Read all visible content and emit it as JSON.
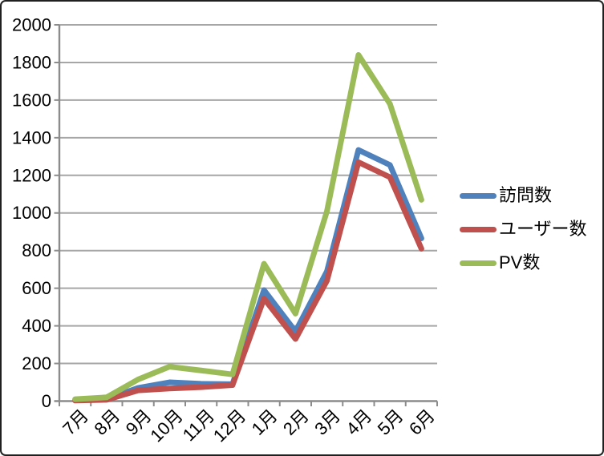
{
  "chart_data": {
    "type": "line",
    "title": "",
    "xlabel": "",
    "ylabel": "",
    "categories": [
      "7月",
      "8月",
      "9月",
      "10月",
      "11月",
      "12月",
      "1月",
      "2月",
      "3月",
      "4月",
      "5月",
      "6月"
    ],
    "series": [
      {
        "name": "訪問数",
        "color": "#4F81BD",
        "values": [
          5,
          10,
          70,
          100,
          92,
          90,
          590,
          370,
          690,
          1335,
          1255,
          865
        ]
      },
      {
        "name": "ユーザー数",
        "color": "#C0504D",
        "values": [
          3,
          7,
          57,
          67,
          74,
          85,
          545,
          330,
          640,
          1270,
          1190,
          810
        ]
      },
      {
        "name": "PV数",
        "color": "#9BBB59",
        "values": [
          10,
          20,
          115,
          183,
          163,
          142,
          730,
          465,
          1010,
          1840,
          1580,
          1070
        ]
      }
    ],
    "ylim": [
      0,
      2000
    ],
    "ytick_interval": 200,
    "yticks": [
      "0",
      "200",
      "400",
      "600",
      "800",
      "1000",
      "1200",
      "1400",
      "1600",
      "1800",
      "2000"
    ],
    "grid": true,
    "legend_position": "right"
  },
  "colors": {
    "grid": "#A6A6A6",
    "axis": "#8C8C8C",
    "text": "#000000",
    "background": "#FFFFFF"
  }
}
